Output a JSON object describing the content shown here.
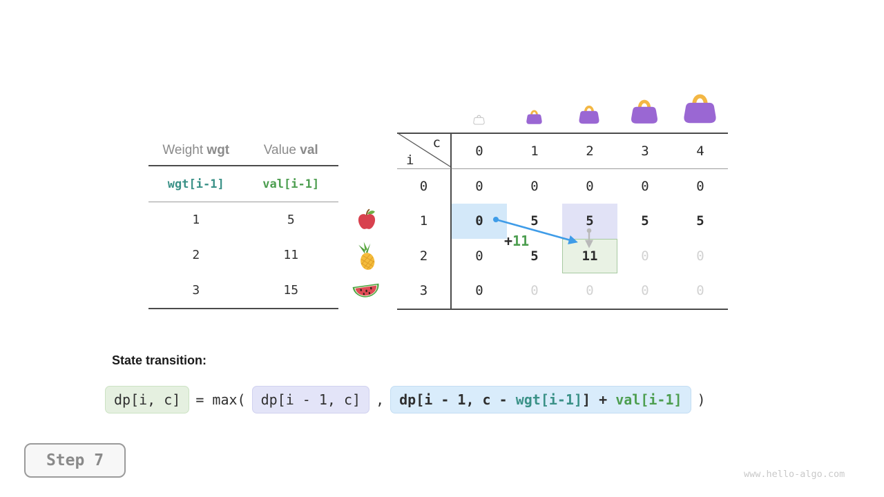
{
  "colors": {
    "teal": "#3a9187",
    "green": "#4d9e50",
    "text_dark": "#2b2b2b",
    "text_gray": "#8b8b8b",
    "cell_gray": "#d2d2d2",
    "hl_blue": "#d3e8f9",
    "hl_lavender": "#e1e2f6",
    "hl_green_bg": "#e9f2e4",
    "hl_green_border": "#a6c9a0",
    "arrow_blue": "#3f9ce8",
    "arrow_gray": "#b9b9b9",
    "bag_purple": "#9a67d3",
    "bag_handle": "#f3b744"
  },
  "item_table": {
    "col1_header": {
      "label": "Weight ",
      "code": "wgt"
    },
    "col2_header": {
      "label": "Value ",
      "code": "val"
    },
    "code_row": {
      "wgt": "wgt[i-1]",
      "val": "val[i-1]"
    },
    "rows": [
      {
        "weight": "1",
        "value": "5",
        "fruit": "apple"
      },
      {
        "weight": "2",
        "value": "11",
        "fruit": "pineapple"
      },
      {
        "weight": "3",
        "value": "15",
        "fruit": "watermelon"
      }
    ]
  },
  "dp_table": {
    "corner": {
      "col_var": "c",
      "row_var": "i"
    },
    "col_headers": [
      "0",
      "1",
      "2",
      "3",
      "4"
    ],
    "row_headers": [
      "0",
      "1",
      "2",
      "3"
    ],
    "cells": [
      [
        "0",
        "0",
        "0",
        "0",
        "0"
      ],
      [
        "0",
        "5",
        "5",
        "5",
        "5"
      ],
      [
        "0",
        "5",
        "11",
        "0",
        "0"
      ],
      [
        "0",
        "0",
        "0",
        "0",
        "0"
      ]
    ],
    "cell_styles": [
      [
        "",
        "",
        "",
        "",
        ""
      ],
      [
        "b hl-blue",
        "b",
        "b hl-lav",
        "b",
        "b"
      ],
      [
        "",
        "b",
        "b hl-green",
        "g",
        "g"
      ],
      [
        "",
        "g",
        "g",
        "g",
        "g"
      ]
    ],
    "bags": [
      {
        "col": "0",
        "variant": "outline"
      },
      {
        "col": "1",
        "variant": "purple"
      },
      {
        "col": "2",
        "variant": "purple"
      },
      {
        "col": "3",
        "variant": "purple"
      },
      {
        "col": "4",
        "variant": "purple"
      }
    ]
  },
  "annotation": {
    "plus": "+",
    "value": "11"
  },
  "transition": {
    "label": "State transition:",
    "lhs": "dp[i, c]",
    "eq": "= max(",
    "arg1": "dp[i - 1, c]",
    "comma": ",",
    "arg2": {
      "pre": "dp[i - 1, c - ",
      "wgt": "wgt[i-1]",
      "mid": "] + ",
      "val": "val[i-1]"
    },
    "close": ")"
  },
  "step_badge": {
    "label": "Step 7"
  },
  "watermark": "www.hello-algo.com"
}
